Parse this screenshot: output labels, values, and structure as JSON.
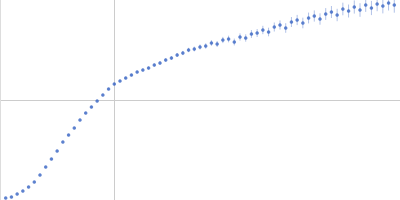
{
  "chart_data": {
    "type": "scatter",
    "color": "#3b66c4",
    "marker": "circle",
    "x": [
      0.005,
      0.01,
      0.015,
      0.02,
      0.025,
      0.03,
      0.035,
      0.04,
      0.045,
      0.05,
      0.055,
      0.06,
      0.065,
      0.07,
      0.075,
      0.08,
      0.085,
      0.09,
      0.095,
      0.1,
      0.105,
      0.11,
      0.115,
      0.12,
      0.125,
      0.13,
      0.135,
      0.14,
      0.145,
      0.15,
      0.155,
      0.16,
      0.165,
      0.17,
      0.175,
      0.18,
      0.185,
      0.19,
      0.195,
      0.2,
      0.205,
      0.21,
      0.215,
      0.22,
      0.225,
      0.23,
      0.235,
      0.24,
      0.245,
      0.25,
      0.255,
      0.26,
      0.265,
      0.27,
      0.275,
      0.28,
      0.285,
      0.29,
      0.295,
      0.3,
      0.305,
      0.31,
      0.315,
      0.32,
      0.325,
      0.33,
      0.335,
      0.34,
      0.345
    ],
    "values": [
      0.02,
      0.03,
      0.06,
      0.09,
      0.13,
      0.18,
      0.25,
      0.33,
      0.41,
      0.49,
      0.58,
      0.65,
      0.72,
      0.8,
      0.87,
      0.93,
      0.99,
      1.05,
      1.11,
      1.16,
      1.19,
      1.22,
      1.25,
      1.28,
      1.3,
      1.32,
      1.35,
      1.37,
      1.4,
      1.42,
      1.45,
      1.47,
      1.5,
      1.51,
      1.53,
      1.54,
      1.57,
      1.56,
      1.6,
      1.61,
      1.58,
      1.63,
      1.62,
      1.66,
      1.67,
      1.7,
      1.68,
      1.73,
      1.75,
      1.72,
      1.78,
      1.8,
      1.77,
      1.82,
      1.84,
      1.81,
      1.86,
      1.88,
      1.85,
      1.91,
      1.89,
      1.93,
      1.9,
      1.95,
      1.92,
      1.96,
      1.94,
      1.97,
      1.95
    ],
    "errors": [
      0.004,
      0.004,
      0.004,
      0.005,
      0.005,
      0.005,
      0.005,
      0.006,
      0.006,
      0.006,
      0.006,
      0.007,
      0.007,
      0.007,
      0.008,
      0.008,
      0.008,
      0.009,
      0.009,
      0.01,
      0.01,
      0.011,
      0.012,
      0.012,
      0.013,
      0.014,
      0.015,
      0.016,
      0.017,
      0.018,
      0.02,
      0.021,
      0.022,
      0.024,
      0.025,
      0.027,
      0.028,
      0.03,
      0.031,
      0.033,
      0.034,
      0.036,
      0.037,
      0.039,
      0.04,
      0.042,
      0.043,
      0.045,
      0.046,
      0.048,
      0.05,
      0.051,
      0.053,
      0.054,
      0.056,
      0.057,
      0.059,
      0.06,
      0.062,
      0.063,
      0.065,
      0.066,
      0.068,
      0.069,
      0.071,
      0.072,
      0.074,
      0.075,
      0.077
    ],
    "xlim": [
      0,
      0.35
    ],
    "ylim": [
      0,
      2
    ],
    "xticks": [
      0.1
    ],
    "yticks": [
      1
    ],
    "grid": true,
    "tick_labels": false
  }
}
